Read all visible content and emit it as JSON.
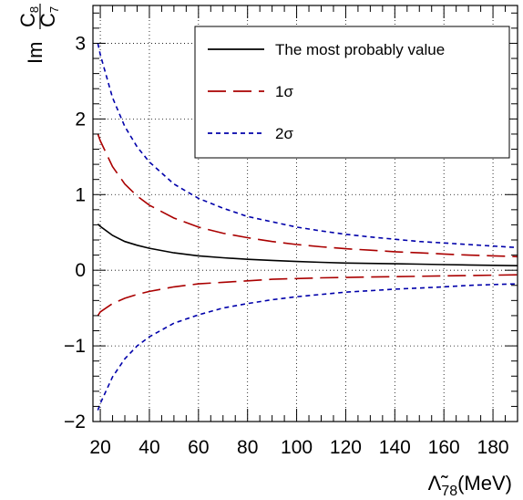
{
  "chart_data": {
    "type": "line",
    "xlim": [
      17,
      190
    ],
    "ylim": [
      -2,
      3.5
    ],
    "xticks": [
      20,
      40,
      60,
      80,
      100,
      120,
      140,
      160,
      180
    ],
    "xtick_labels": [
      "20",
      "40",
      "60",
      "80",
      "100",
      "120",
      "140",
      "160",
      "180"
    ],
    "yticks": [
      -2,
      -1,
      0,
      1,
      2,
      3
    ],
    "ytick_labels": [
      "−2",
      "−1",
      "0",
      "1",
      "2",
      "3"
    ],
    "grid": true,
    "xlabel": {
      "main": "Λ̃",
      "sub": "78",
      "unit": "(MeV)"
    },
    "ylabel": {
      "prefix": "Im",
      "numerator": "C",
      "numerator_sub": "8",
      "denominator": "C",
      "denominator_sub": "7"
    },
    "legend_position": "top-right",
    "x": [
      19,
      20,
      25,
      30,
      35,
      40,
      50,
      60,
      70,
      80,
      90,
      100,
      110,
      120,
      130,
      140,
      150,
      160,
      170,
      180,
      190
    ],
    "series": [
      {
        "name": "The most probably value",
        "color": "#000000",
        "style": "solid",
        "values": [
          0.61,
          0.58,
          0.46,
          0.38,
          0.33,
          0.29,
          0.23,
          0.19,
          0.165,
          0.145,
          0.13,
          0.115,
          0.105,
          0.095,
          0.09,
          0.085,
          0.08,
          0.075,
          0.07,
          0.065,
          0.06
        ]
      },
      {
        "name": "1σ",
        "color": "#aa0000",
        "style": "dashed",
        "values": [
          1.8,
          1.71,
          1.37,
          1.14,
          0.98,
          0.86,
          0.69,
          0.57,
          0.49,
          0.43,
          0.38,
          0.34,
          0.31,
          0.285,
          0.265,
          0.245,
          0.23,
          0.215,
          0.2,
          0.19,
          0.18
        ]
      },
      {
        "name": "1σ",
        "color": "#aa0000",
        "style": "dashed",
        "values": [
          -0.6,
          -0.55,
          -0.44,
          -0.37,
          -0.32,
          -0.28,
          -0.22,
          -0.18,
          -0.16,
          -0.14,
          -0.12,
          -0.11,
          -0.1,
          -0.095,
          -0.09,
          -0.085,
          -0.08,
          -0.075,
          -0.07,
          -0.065,
          -0.06
        ]
      },
      {
        "name": "2σ",
        "color": "#0000aa",
        "style": "dotted",
        "values": [
          3.0,
          2.85,
          2.28,
          1.9,
          1.63,
          1.43,
          1.14,
          0.95,
          0.82,
          0.71,
          0.64,
          0.57,
          0.52,
          0.475,
          0.44,
          0.41,
          0.38,
          0.36,
          0.34,
          0.32,
          0.3
        ]
      },
      {
        "name": "2σ",
        "color": "#0000aa",
        "style": "dotted",
        "values": [
          -1.85,
          -1.76,
          -1.41,
          -1.17,
          -1.0,
          -0.88,
          -0.7,
          -0.59,
          -0.5,
          -0.44,
          -0.39,
          -0.35,
          -0.32,
          -0.29,
          -0.27,
          -0.25,
          -0.235,
          -0.22,
          -0.2,
          -0.19,
          -0.18
        ]
      }
    ],
    "legend": [
      {
        "label": "The most probably value",
        "color": "#000000",
        "style": "solid"
      },
      {
        "label": "1σ",
        "color": "#aa0000",
        "style": "dashed"
      },
      {
        "label": "2σ",
        "color": "#0000aa",
        "style": "dotted"
      }
    ]
  }
}
